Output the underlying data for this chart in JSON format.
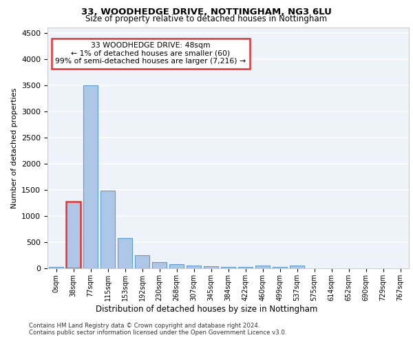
{
  "title": "33, WOODHEDGE DRIVE, NOTTINGHAM, NG3 6LU",
  "subtitle": "Size of property relative to detached houses in Nottingham",
  "xlabel": "Distribution of detached houses by size in Nottingham",
  "ylabel": "Number of detached properties",
  "bin_labels": [
    "0sqm",
    "38sqm",
    "77sqm",
    "115sqm",
    "153sqm",
    "192sqm",
    "230sqm",
    "268sqm",
    "307sqm",
    "345sqm",
    "384sqm",
    "422sqm",
    "460sqm",
    "499sqm",
    "537sqm",
    "575sqm",
    "614sqm",
    "652sqm",
    "690sqm",
    "729sqm",
    "767sqm"
  ],
  "bar_heights": [
    30,
    1270,
    3500,
    1480,
    580,
    250,
    120,
    80,
    50,
    40,
    25,
    20,
    50,
    30,
    50,
    5,
    5,
    3,
    2,
    2,
    2
  ],
  "bar_color": "#aec6e8",
  "bar_edge_color": "#5a9fd4",
  "highlight_bar_index": 1,
  "highlight_edge_color": "#e63232",
  "annotation_text": "33 WOODHEDGE DRIVE: 48sqm\n← 1% of detached houses are smaller (60)\n99% of semi-detached houses are larger (7,216) →",
  "annotation_box_color": "#ffffff",
  "annotation_box_edge_color": "#e63232",
  "ylim": [
    0,
    4600
  ],
  "yticks": [
    0,
    500,
    1000,
    1500,
    2000,
    2500,
    3000,
    3500,
    4000,
    4500
  ],
  "bg_color": "#eef2f9",
  "footer_line1": "Contains HM Land Registry data © Crown copyright and database right 2024.",
  "footer_line2": "Contains public sector information licensed under the Open Government Licence v3.0."
}
